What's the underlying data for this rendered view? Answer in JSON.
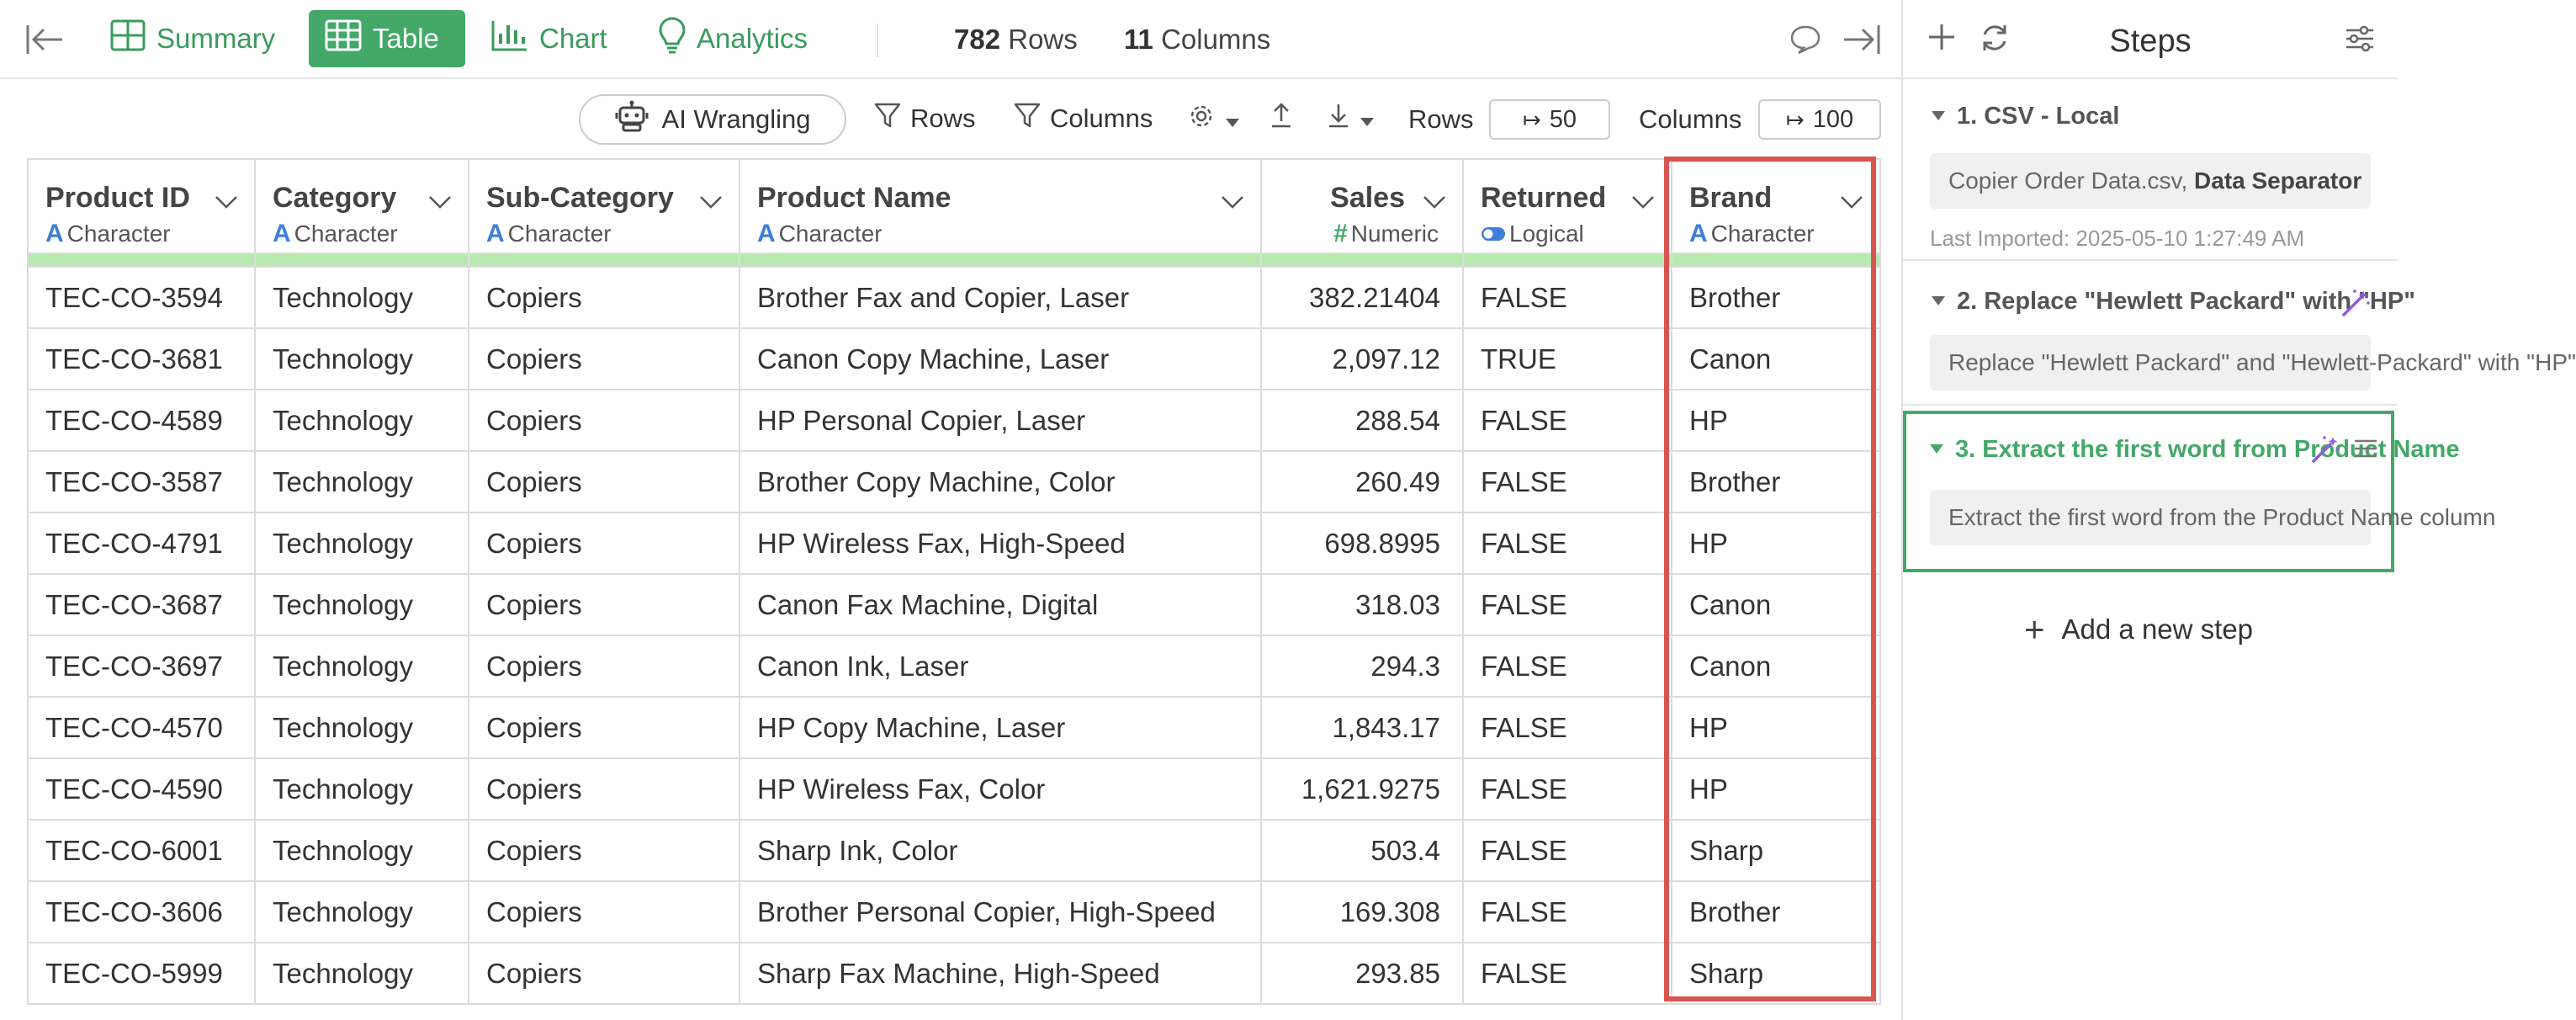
{
  "view_tabs": {
    "summary": "Summary",
    "table": "Table",
    "chart": "Chart",
    "analytics": "Analytics"
  },
  "counts": {
    "rows_value": "782",
    "rows_label": "Rows",
    "columns_value": "11",
    "columns_label": "Columns"
  },
  "toolbar": {
    "ai_wrangling": "AI Wrangling",
    "rows_filter": "Rows",
    "columns_filter": "Columns",
    "rows_limit_label": "Rows",
    "rows_limit_value": "50",
    "columns_limit_label": "Columns",
    "columns_limit_value": "100"
  },
  "columns": [
    {
      "name": "Product ID",
      "type": "Character",
      "type_icon": "A"
    },
    {
      "name": "Category",
      "type": "Character",
      "type_icon": "A"
    },
    {
      "name": "Sub-Category",
      "type": "Character",
      "type_icon": "A"
    },
    {
      "name": "Product Name",
      "type": "Character",
      "type_icon": "A"
    },
    {
      "name": "Sales",
      "type": "Numeric",
      "type_icon": "#"
    },
    {
      "name": "Returned",
      "type": "Logical",
      "type_icon": "toggle"
    },
    {
      "name": "Brand",
      "type": "Character",
      "type_icon": "A"
    }
  ],
  "rows": [
    [
      "TEC-CO-3594",
      "Technology",
      "Copiers",
      "Brother Fax and Copier, Laser",
      "382.21404",
      "FALSE",
      "Brother"
    ],
    [
      "TEC-CO-3681",
      "Technology",
      "Copiers",
      "Canon Copy Machine, Laser",
      "2,097.12",
      "TRUE",
      "Canon"
    ],
    [
      "TEC-CO-4589",
      "Technology",
      "Copiers",
      "HP Personal Copier, Laser",
      "288.54",
      "FALSE",
      "HP"
    ],
    [
      "TEC-CO-3587",
      "Technology",
      "Copiers",
      "Brother Copy Machine, Color",
      "260.49",
      "FALSE",
      "Brother"
    ],
    [
      "TEC-CO-4791",
      "Technology",
      "Copiers",
      "HP Wireless Fax, High-Speed",
      "698.8995",
      "FALSE",
      "HP"
    ],
    [
      "TEC-CO-3687",
      "Technology",
      "Copiers",
      "Canon Fax Machine, Digital",
      "318.03",
      "FALSE",
      "Canon"
    ],
    [
      "TEC-CO-3697",
      "Technology",
      "Copiers",
      "Canon Ink, Laser",
      "294.3",
      "FALSE",
      "Canon"
    ],
    [
      "TEC-CO-4570",
      "Technology",
      "Copiers",
      "HP Copy Machine, Laser",
      "1,843.17",
      "FALSE",
      "HP"
    ],
    [
      "TEC-CO-4590",
      "Technology",
      "Copiers",
      "HP Wireless Fax, Color",
      "1,621.9275",
      "FALSE",
      "HP"
    ],
    [
      "TEC-CO-6001",
      "Technology",
      "Copiers",
      "Sharp Ink, Color",
      "503.4",
      "FALSE",
      "Sharp"
    ],
    [
      "TEC-CO-3606",
      "Technology",
      "Copiers",
      "Brother Personal Copier, High-Speed",
      "169.308",
      "FALSE",
      "Brother"
    ],
    [
      "TEC-CO-5999",
      "Technology",
      "Copiers",
      "Sharp Fax Machine, High-Speed",
      "293.85",
      "FALSE",
      "Sharp"
    ]
  ],
  "steps_panel": {
    "title": "Steps",
    "steps": [
      {
        "title": "1. CSV - Local",
        "desc_plain": "Copier Order Data.csv, ",
        "desc_bold": "Data Separator",
        "last_imported": "Last Imported: 2025-05-10 1:27:49 AM"
      },
      {
        "title": "2. Replace \"Hewlett Packard\" with \"HP\"",
        "desc": "Replace \"Hewlett Packard\" and \"Hewlett-Packard\" with \"HP\""
      },
      {
        "title": "3. Extract the first word from Product Name",
        "desc": "Extract the first word from the Product Name column"
      }
    ],
    "add_step": "Add a new step"
  },
  "colors": {
    "accent_green": "#43a868",
    "highlight_red": "#d9534f",
    "type_blue": "#3d7fd6",
    "histogram_green": "#b8eab0",
    "ai_purple": "#8e5cd9"
  }
}
